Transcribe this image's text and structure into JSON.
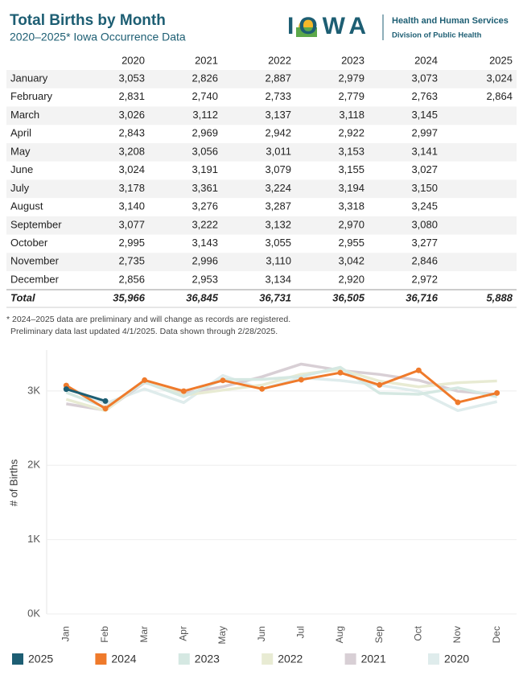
{
  "header": {
    "title": "Total Births by Month",
    "subtitle": "2020–2025* Iowa Occurrence Data",
    "logo": "IOWA",
    "agency": "Health and Human Services",
    "division": "Division of Public Health"
  },
  "table": {
    "columns": [
      "2020",
      "2021",
      "2022",
      "2023",
      "2024",
      "2025"
    ],
    "rows": [
      [
        "January",
        "3,053",
        "2,826",
        "2,887",
        "2,979",
        "3,073",
        "3,024"
      ],
      [
        "February",
        "2,831",
        "2,740",
        "2,733",
        "2,779",
        "2,763",
        "2,864"
      ],
      [
        "March",
        "3,026",
        "3,112",
        "3,137",
        "3,118",
        "3,145"
      ],
      [
        "April",
        "2,843",
        "2,969",
        "2,942",
        "2,922",
        "2,997"
      ],
      [
        "May",
        "3,208",
        "3,056",
        "3,011",
        "3,153",
        "3,141"
      ],
      [
        "June",
        "3,024",
        "3,191",
        "3,079",
        "3,155",
        "3,027"
      ],
      [
        "July",
        "3,178",
        "3,361",
        "3,224",
        "3,194",
        "3,150"
      ],
      [
        "August",
        "3,140",
        "3,276",
        "3,287",
        "3,318",
        "3,245"
      ],
      [
        "September",
        "3,077",
        "3,222",
        "3,132",
        "2,970",
        "3,080"
      ],
      [
        "October",
        "2,995",
        "3,143",
        "3,055",
        "2,955",
        "3,277"
      ],
      [
        "November",
        "2,735",
        "2,996",
        "3,110",
        "3,042",
        "2,846"
      ],
      [
        "December",
        "2,856",
        "2,953",
        "3,134",
        "2,920",
        "2,972"
      ]
    ],
    "total": [
      "Total",
      "35,966",
      "36,845",
      "36,731",
      "36,505",
      "36,716",
      "5,888"
    ]
  },
  "notes": [
    "* 2024–2025 data are preliminary and will change as records are registered.",
    "Preliminary data last updated 4/1/2025. Data shown through 2/28/2025."
  ],
  "chart_data": {
    "type": "line",
    "y_label": "# of Births",
    "categories": [
      "Jan",
      "Feb",
      "Mar",
      "Apr",
      "May",
      "Jun",
      "Jul",
      "Aug",
      "Sep",
      "Oct",
      "Nov",
      "Dec"
    ],
    "ylim": [
      0,
      3550
    ],
    "yticks": [
      {
        "value": 0,
        "label": "0K"
      },
      {
        "value": 1000,
        "label": "1K"
      },
      {
        "value": 2000,
        "label": "2K"
      },
      {
        "value": 3000,
        "label": "3K"
      }
    ],
    "grid": true,
    "series": [
      {
        "name": "2025",
        "color": "#1d5e73",
        "markers": true,
        "values": [
          3024,
          2864,
          null,
          null,
          null,
          null,
          null,
          null,
          null,
          null,
          null,
          null
        ]
      },
      {
        "name": "2024",
        "color": "#ef7a2b",
        "markers": true,
        "values": [
          3073,
          2763,
          3145,
          2997,
          3141,
          3027,
          3150,
          3245,
          3080,
          3277,
          2846,
          2972
        ]
      },
      {
        "name": "2023",
        "color": "#d5e8e2",
        "markers": false,
        "values": [
          2979,
          2779,
          3118,
          2922,
          3153,
          3155,
          3194,
          3318,
          2970,
          2955,
          3042,
          2920
        ]
      },
      {
        "name": "2022",
        "color": "#e8ebd3",
        "markers": false,
        "values": [
          2887,
          2733,
          3137,
          2942,
          3011,
          3079,
          3224,
          3287,
          3132,
          3055,
          3110,
          3134
        ]
      },
      {
        "name": "2021",
        "color": "#d8cfd5",
        "markers": false,
        "values": [
          2826,
          2740,
          3112,
          2969,
          3056,
          3191,
          3361,
          3276,
          3222,
          3143,
          2996,
          2953
        ]
      },
      {
        "name": "2020",
        "color": "#dfecec",
        "markers": false,
        "values": [
          3053,
          2831,
          3026,
          2843,
          3208,
          3024,
          3178,
          3140,
          3077,
          2995,
          2735,
          2856
        ]
      }
    ]
  }
}
